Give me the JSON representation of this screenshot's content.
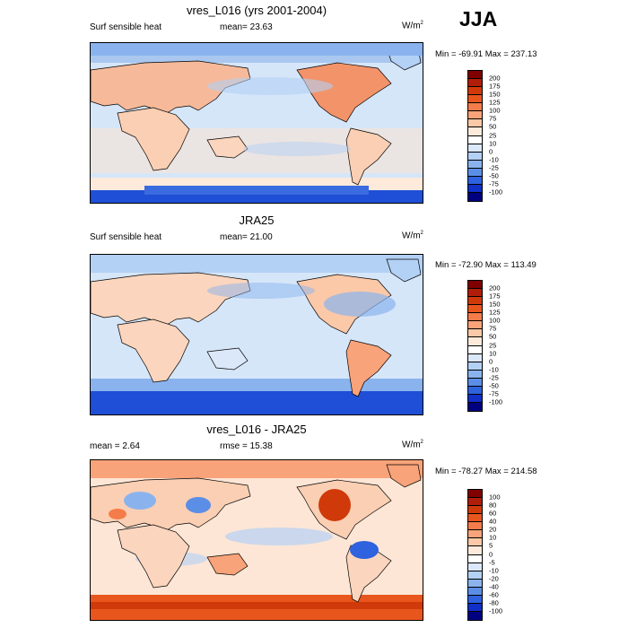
{
  "season": "JJA",
  "panels": [
    {
      "title": "vres_L016 (yrs 2001-2004)",
      "left_text": "Surf sensible heat",
      "center_text": "mean=  23.63",
      "unit": "W/m",
      "unit_exp": "2",
      "minmax": "Min = -69.91 Max = 237.13",
      "colorbar": {
        "labels": [
          "200",
          "175",
          "150",
          "125",
          "100",
          "75",
          "50",
          "25",
          "10",
          "0",
          "-10",
          "-25",
          "-50",
          "-75",
          "-100"
        ],
        "colors": [
          "#800000",
          "#b01e0a",
          "#d03a0a",
          "#e8561e",
          "#f47c4a",
          "#f8a37a",
          "#fbc8a8",
          "#fdeadb",
          "#ffffff",
          "#dbe8fa",
          "#b3d0f5",
          "#8ab3ee",
          "#5b8ee6",
          "#2e62de",
          "#1030c8",
          "#000080"
        ]
      }
    },
    {
      "title": "JRA25",
      "left_text": "Surf sensible heat",
      "center_text": "mean=  21.00",
      "unit": "W/m",
      "unit_exp": "2",
      "minmax": "Min = -72.90 Max = 113.49",
      "colorbar": {
        "labels": [
          "200",
          "175",
          "150",
          "125",
          "100",
          "75",
          "50",
          "25",
          "10",
          "0",
          "-10",
          "-25",
          "-50",
          "-75",
          "-100"
        ],
        "colors": [
          "#800000",
          "#b01e0a",
          "#d03a0a",
          "#e8561e",
          "#f47c4a",
          "#f8a37a",
          "#fbc8a8",
          "#fdeadb",
          "#ffffff",
          "#dbe8fa",
          "#b3d0f5",
          "#8ab3ee",
          "#5b8ee6",
          "#2e62de",
          "#1030c8",
          "#000080"
        ]
      }
    },
    {
      "title": "vres_L016 - JRA25",
      "left_text": "mean =   2.64",
      "center_text": "rmse =  15.38",
      "unit": "W/m",
      "unit_exp": "2",
      "minmax": "Min = -78.27 Max = 214.58",
      "colorbar": {
        "labels": [
          "100",
          "80",
          "60",
          "40",
          "20",
          "10",
          "5",
          "0",
          "-5",
          "-10",
          "-20",
          "-40",
          "-60",
          "-80",
          "-100"
        ],
        "colors": [
          "#800000",
          "#b01e0a",
          "#d03a0a",
          "#e8561e",
          "#f47c4a",
          "#f8a37a",
          "#fbc8a8",
          "#fdeadb",
          "#ffffff",
          "#dbe8fa",
          "#b3d0f5",
          "#8ab3ee",
          "#5b8ee6",
          "#2e62de",
          "#1030c8",
          "#000080"
        ]
      }
    }
  ]
}
